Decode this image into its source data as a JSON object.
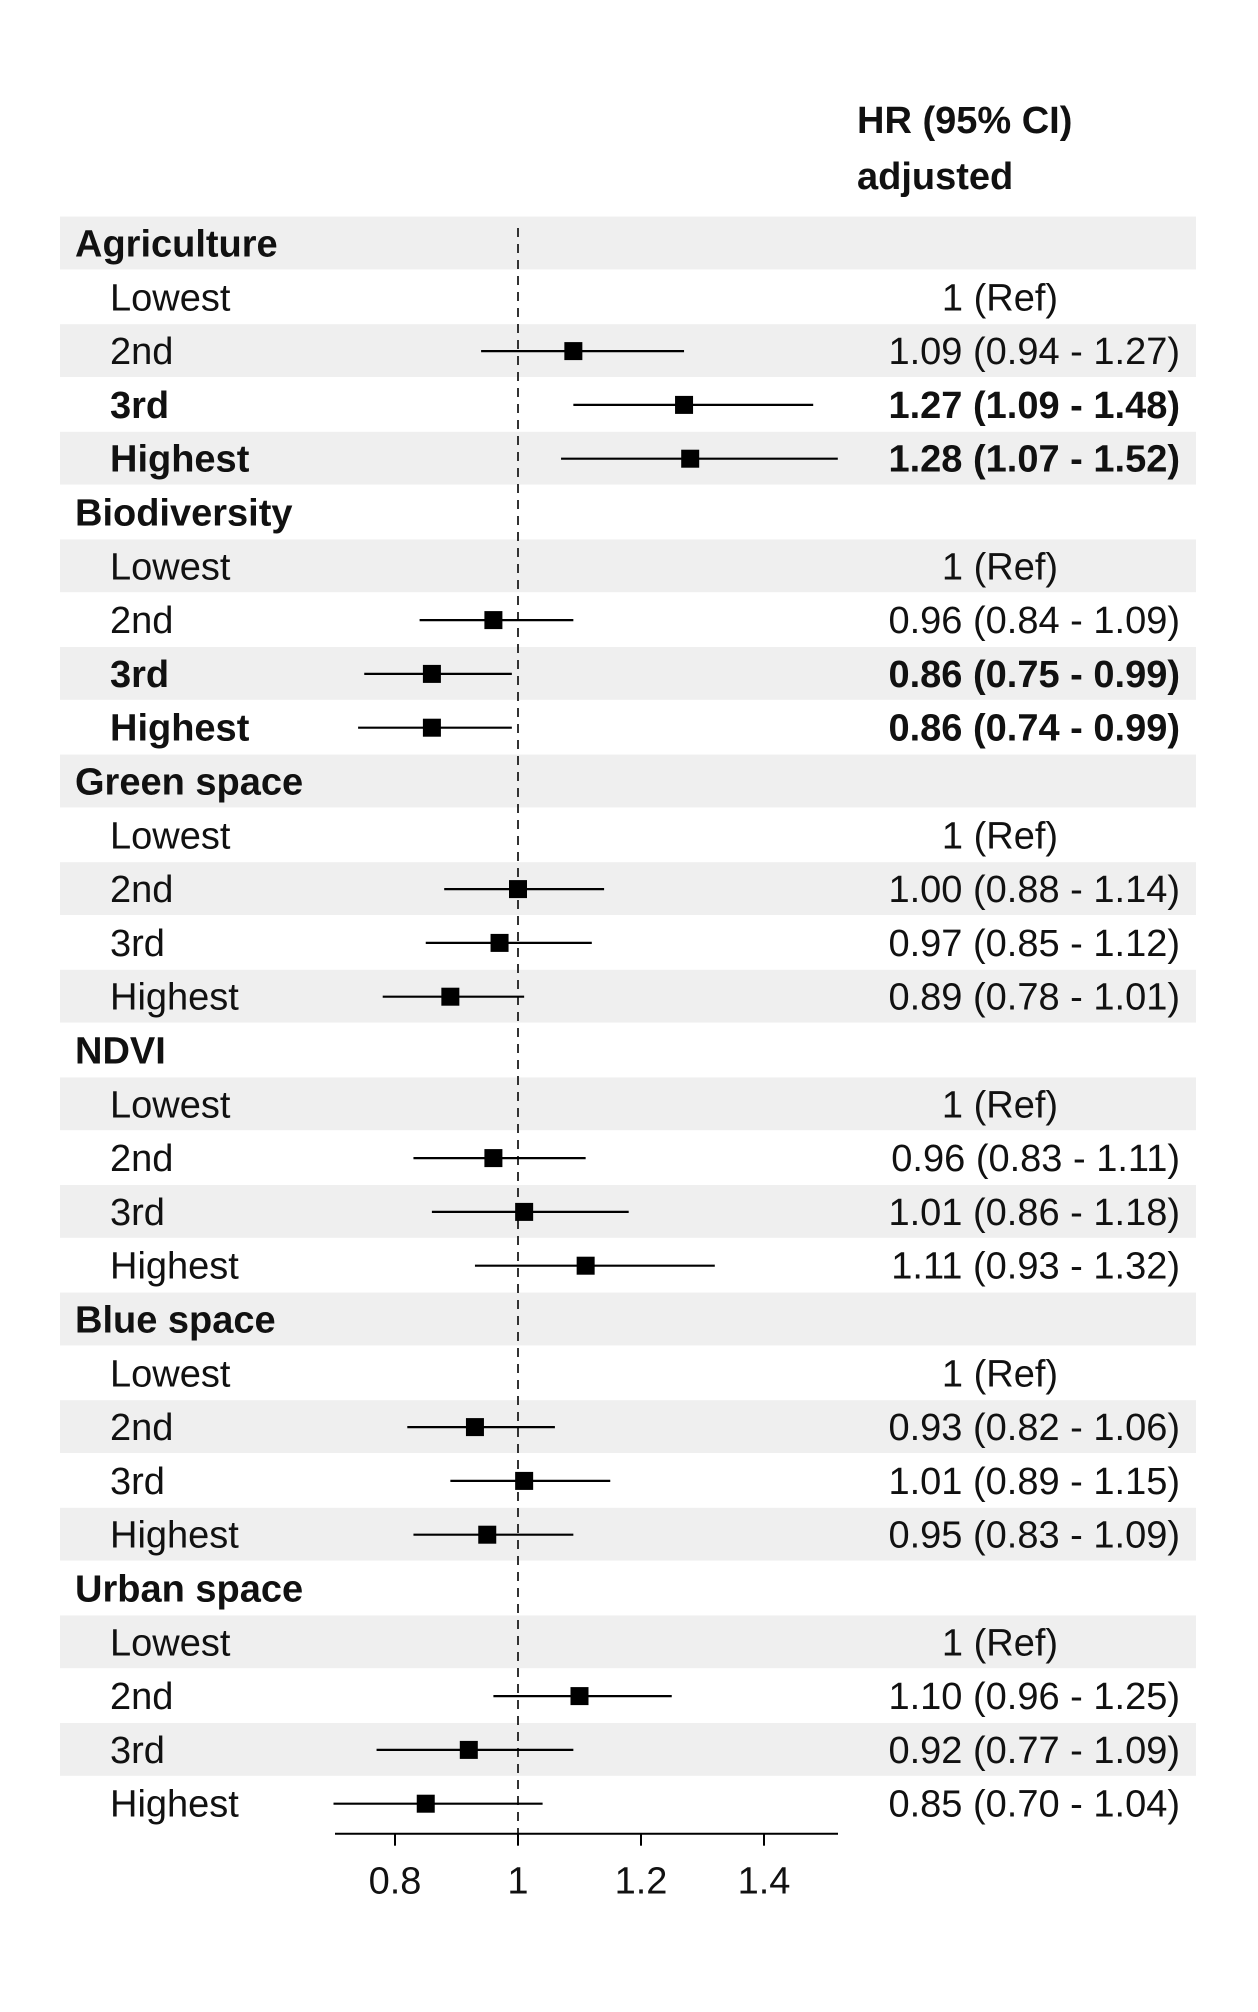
{
  "chart_data": {
    "type": "forest",
    "header": {
      "line1": "HR (95% CI)",
      "line2": "adjusted"
    },
    "reference_line": 1,
    "xlim": [
      0.69,
      1.52
    ],
    "x_ticks": [
      {
        "value": 0.8,
        "label": "0.8"
      },
      {
        "value": 1.0,
        "label": "1"
      },
      {
        "value": 1.2,
        "label": "1.2"
      },
      {
        "value": 1.4,
        "label": "1.4"
      }
    ],
    "groups": [
      {
        "label": "Agriculture",
        "rows": [
          {
            "label": "Lowest",
            "estimate": null,
            "text": "1 (Ref)",
            "bold": false
          },
          {
            "label": "2nd",
            "estimate": 1.09,
            "lower": 0.94,
            "upper": 1.27,
            "text": "1.09 (0.94 - 1.27)",
            "bold": false
          },
          {
            "label": "3rd",
            "estimate": 1.27,
            "lower": 1.09,
            "upper": 1.48,
            "text": "1.27 (1.09 - 1.48)",
            "bold": true
          },
          {
            "label": "Highest",
            "estimate": 1.28,
            "lower": 1.07,
            "upper": 1.52,
            "text": "1.28 (1.07 - 1.52)",
            "bold": true
          }
        ]
      },
      {
        "label": "Biodiversity",
        "rows": [
          {
            "label": "Lowest",
            "estimate": null,
            "text": "1 (Ref)",
            "bold": false
          },
          {
            "label": "2nd",
            "estimate": 0.96,
            "lower": 0.84,
            "upper": 1.09,
            "text": "0.96 (0.84 - 1.09)",
            "bold": false
          },
          {
            "label": "3rd",
            "estimate": 0.86,
            "lower": 0.75,
            "upper": 0.99,
            "text": "0.86 (0.75 - 0.99)",
            "bold": true
          },
          {
            "label": "Highest",
            "estimate": 0.86,
            "lower": 0.74,
            "upper": 0.99,
            "text": "0.86 (0.74 - 0.99)",
            "bold": true
          }
        ]
      },
      {
        "label": "Green space",
        "rows": [
          {
            "label": "Lowest",
            "estimate": null,
            "text": "1 (Ref)",
            "bold": false
          },
          {
            "label": "2nd",
            "estimate": 1.0,
            "lower": 0.88,
            "upper": 1.14,
            "text": "1.00 (0.88 - 1.14)",
            "bold": false
          },
          {
            "label": "3rd",
            "estimate": 0.97,
            "lower": 0.85,
            "upper": 1.12,
            "text": "0.97 (0.85 - 1.12)",
            "bold": false
          },
          {
            "label": "Highest",
            "estimate": 0.89,
            "lower": 0.78,
            "upper": 1.01,
            "text": "0.89 (0.78 - 1.01)",
            "bold": false
          }
        ]
      },
      {
        "label": "NDVI",
        "rows": [
          {
            "label": "Lowest",
            "estimate": null,
            "text": "1 (Ref)",
            "bold": false
          },
          {
            "label": "2nd",
            "estimate": 0.96,
            "lower": 0.83,
            "upper": 1.11,
            "text": "0.96 (0.83 - 1.11)",
            "bold": false
          },
          {
            "label": "3rd",
            "estimate": 1.01,
            "lower": 0.86,
            "upper": 1.18,
            "text": "1.01 (0.86 - 1.18)",
            "bold": false
          },
          {
            "label": "Highest",
            "estimate": 1.11,
            "lower": 0.93,
            "upper": 1.32,
            "text": "1.11 (0.93 - 1.32)",
            "bold": false
          }
        ]
      },
      {
        "label": "Blue space",
        "rows": [
          {
            "label": "Lowest",
            "estimate": null,
            "text": "1 (Ref)",
            "bold": false
          },
          {
            "label": "2nd",
            "estimate": 0.93,
            "lower": 0.82,
            "upper": 1.06,
            "text": "0.93 (0.82 - 1.06)",
            "bold": false
          },
          {
            "label": "3rd",
            "estimate": 1.01,
            "lower": 0.89,
            "upper": 1.15,
            "text": "1.01 (0.89 - 1.15)",
            "bold": false
          },
          {
            "label": "Highest",
            "estimate": 0.95,
            "lower": 0.83,
            "upper": 1.09,
            "text": "0.95 (0.83 - 1.09)",
            "bold": false
          }
        ]
      },
      {
        "label": "Urban space",
        "rows": [
          {
            "label": "Lowest",
            "estimate": null,
            "text": "1 (Ref)",
            "bold": false
          },
          {
            "label": "2nd",
            "estimate": 1.1,
            "lower": 0.96,
            "upper": 1.25,
            "text": "1.10 (0.96 - 1.25)",
            "bold": false
          },
          {
            "label": "3rd",
            "estimate": 0.92,
            "lower": 0.77,
            "upper": 1.09,
            "text": "0.92 (0.77 - 1.09)",
            "bold": false
          },
          {
            "label": "Highest",
            "estimate": 0.85,
            "lower": 0.7,
            "upper": 1.04,
            "text": "0.85 (0.70 - 1.04)",
            "bold": false
          }
        ]
      }
    ],
    "colors": {
      "stripe": "#efefef",
      "marker": "#000000",
      "text": "#111111"
    }
  }
}
